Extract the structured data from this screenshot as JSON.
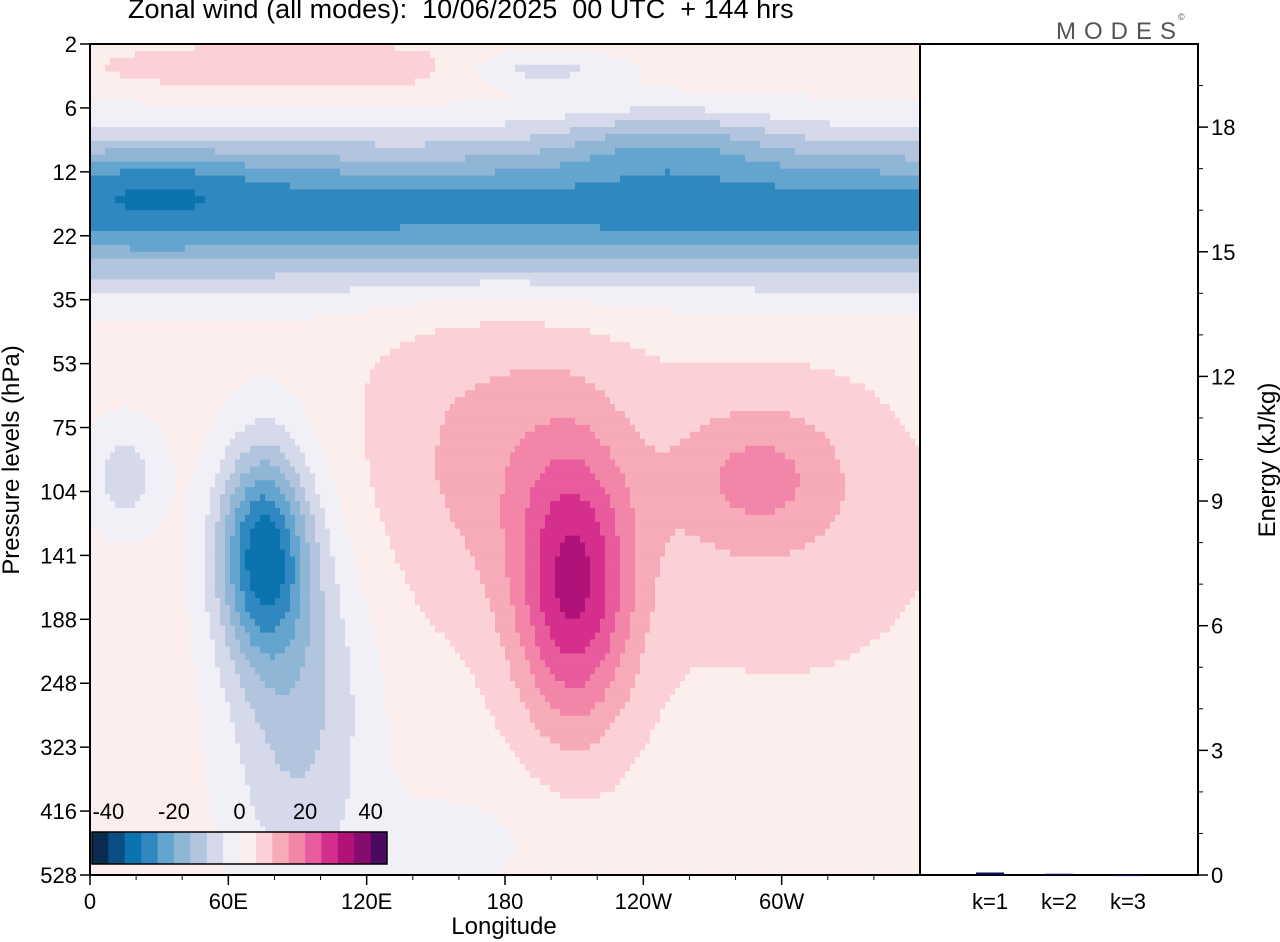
{
  "header": {
    "title": "Zonal wind (all modes):  10/06/2025  00 UTC  + 144 hrs",
    "logo_text": "MODES",
    "logo_mark": "©"
  },
  "chart_data": [
    {
      "type": "heatmap",
      "title": "Zonal wind (all modes):  10/06/2025  00 UTC  + 144 hrs",
      "xlabel": "Longitude",
      "ylabel": "Pressure levels (hPa)",
      "x_ticks": [
        "0",
        "60E",
        "120E",
        "180",
        "120W",
        "60W"
      ],
      "y_ticks": [
        "2",
        "6",
        "12",
        "22",
        "35",
        "53",
        "75",
        "104",
        "141",
        "188",
        "248",
        "323",
        "416",
        "528"
      ],
      "y_scale": "model levels (log-like, 2 at top, 528 at bottom)",
      "colorbar": {
        "tick_labels": [
          "-40",
          "-20",
          "0",
          "20",
          "40"
        ],
        "range": [
          -45,
          45
        ],
        "colors": [
          "#0b2c4f",
          "#0a4e85",
          "#0b73ae",
          "#2f88bf",
          "#63a5cf",
          "#90b6d6",
          "#b3c4de",
          "#d5d9e9",
          "#f1f0f6",
          "#fdeeee",
          "#fbd1d6",
          "#f7aab7",
          "#f386a8",
          "#e85b9d",
          "#d52e8c",
          "#b0127a",
          "#860b6f",
          "#4b0a62"
        ]
      },
      "features": [
        {
          "region": "stratosphere 6-35 hPa, all longitudes",
          "value_range": [
            -35,
            -20
          ],
          "sign": "easterly"
        },
        {
          "region": "near 10 hPa, 120W-80W",
          "value_range": [
            -40,
            -35
          ],
          "sign": "easterly"
        },
        {
          "region": "60E-90E, 100-200 hPa",
          "min_value": -35,
          "sign": "easterly"
        },
        {
          "region": "near 160W, 150-200 hPa",
          "max_value": 25,
          "sign": "westerly"
        },
        {
          "region": "80W-60W, 90-110 hPa",
          "max_value": 10,
          "sign": "westerly"
        }
      ]
    },
    {
      "type": "bar",
      "ylabel": "Energy (kJ/kg)",
      "categories": [
        "k=1",
        "k=2",
        "k=3"
      ],
      "values": [
        0.06,
        0.03,
        0.01
      ],
      "ylim": [
        0,
        20
      ],
      "y_ticks": [
        "0",
        "3",
        "6",
        "9",
        "12",
        "15",
        "18"
      ],
      "bar_color": "#0a0a4e"
    }
  ]
}
